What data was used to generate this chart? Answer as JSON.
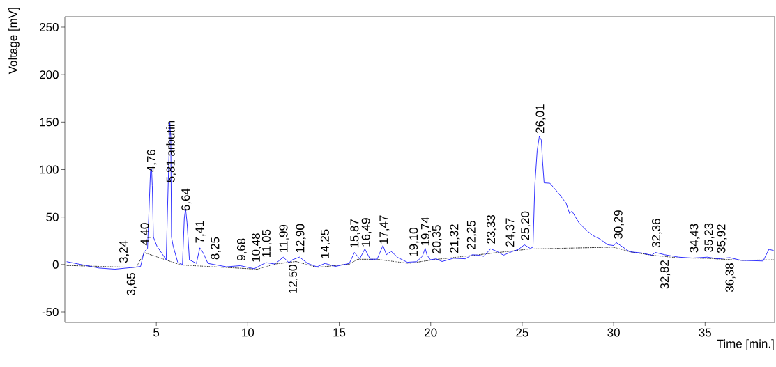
{
  "chart_data": {
    "type": "line",
    "xlabel": "Time [min.]",
    "ylabel": "Voltage [mV]",
    "xlim": [
      0,
      38.8
    ],
    "ylim": [
      -61,
      261
    ],
    "xticks": [
      5,
      10,
      15,
      20,
      25,
      30,
      35
    ],
    "yticks": [
      -50,
      0,
      50,
      100,
      150,
      200,
      250
    ],
    "grid": false,
    "marker": "none",
    "series": [
      {
        "color": "#0000ff",
        "line_style": "solid",
        "x": [
          0.1,
          1.86,
          2.74,
          3.76,
          4.14,
          4.33,
          4.52,
          4.68,
          4.74,
          4.78,
          4.84,
          5.03,
          5.54,
          5.67,
          5.74,
          5.79,
          5.83,
          5.92,
          6.17,
          6.43,
          6.53,
          6.6,
          6.68,
          6.81,
          7.19,
          7.38,
          7.57,
          7.82,
          8.83,
          9.59,
          10.35,
          10.99,
          11.49,
          11.94,
          12.25,
          12.44,
          12.83,
          13.27,
          13.78,
          14.22,
          14.79,
          15.55,
          15.83,
          16.12,
          16.4,
          16.69,
          17.07,
          17.39,
          17.58,
          17.83,
          18.21,
          18.72,
          19.23,
          19.54,
          19.7,
          19.8,
          19.99,
          20.3,
          20.62,
          21.25,
          21.89,
          22.27,
          22.65,
          22.9,
          23.28,
          23.66,
          23.98,
          24.42,
          24.8,
          25.12,
          25.44,
          25.59,
          25.69,
          25.82,
          25.94,
          26.05,
          26.11,
          26.2,
          26.52,
          26.96,
          27.4,
          27.59,
          27.72,
          28.1,
          28.48,
          28.86,
          29.24,
          29.68,
          30.0,
          30.15,
          30.51,
          30.89,
          31.52,
          32.09,
          32.28,
          32.79,
          33.55,
          34.31,
          35.13,
          35.7,
          36.34,
          36.97,
          38.17,
          38.49,
          38.75
        ],
        "values": [
          3,
          -3.7,
          -4.9,
          -3,
          -2,
          13.4,
          17,
          98,
          101,
          83,
          29,
          19.5,
          5,
          100,
          150,
          134,
          29,
          19.5,
          2.4,
          0,
          49,
          58.7,
          44,
          5,
          1.2,
          17.6,
          12,
          1.2,
          -2.4,
          -1.2,
          -4.4,
          2,
          0.5,
          7.8,
          2,
          5,
          7.8,
          1.2,
          -2.4,
          1.2,
          -2,
          1.2,
          12.7,
          6,
          16.4,
          5.6,
          5.6,
          20,
          10.3,
          14,
          7.3,
          2.4,
          3,
          8.6,
          17,
          9.8,
          5,
          6,
          3.2,
          6.6,
          6,
          10.3,
          9.8,
          8.6,
          16.6,
          13.4,
          9.8,
          13.4,
          16,
          20.8,
          17,
          18.3,
          83,
          120,
          135,
          131,
          110,
          86,
          85.6,
          75.8,
          64.8,
          53.8,
          56.3,
          44,
          36.7,
          30.6,
          27,
          20.8,
          20,
          23,
          18.3,
          13.4,
          12.2,
          9.8,
          12.7,
          10.3,
          7.8,
          6.8,
          7.8,
          6,
          7.3,
          4.4,
          3.7,
          16,
          14.7
        ]
      },
      {
        "color": "#000000",
        "line_style": "dotted",
        "x": [
          0.1,
          3.9,
          4.35,
          5.59,
          6.36,
          10.53,
          11.48,
          12.64,
          13.78,
          15.57,
          16.0,
          17.07,
          18.8,
          19.23,
          20.1,
          25.44,
          30.0,
          30.89,
          32.09,
          33.55,
          35.13,
          36.97,
          38.75
        ],
        "values": [
          -1,
          -3,
          12.5,
          4.4,
          -0.5,
          -4.9,
          0.5,
          3.2,
          -3,
          0.5,
          5.5,
          5.5,
          1.2,
          2.4,
          4.9,
          16.4,
          18.3,
          13.4,
          9.8,
          7,
          6.5,
          4.4,
          5
        ]
      }
    ],
    "annotations": [
      {
        "text": "3,24",
        "x": 3.24,
        "y": -3.9
      },
      {
        "text": "3,65",
        "x": 3.65,
        "y": -3.2
      },
      {
        "text": "4,40",
        "x": 4.4,
        "y": 14.7
      },
      {
        "text": "4,76",
        "x": 4.76,
        "y": 92
      },
      {
        "text": "5,81 arbutin",
        "x": 5.81,
        "y": 81
      },
      {
        "text": "6,64",
        "x": 6.64,
        "y": 51
      },
      {
        "text": "7,41",
        "x": 7.41,
        "y": 17
      },
      {
        "text": "8,25",
        "x": 8.25,
        "y": -0.3
      },
      {
        "text": "9,68",
        "x": 9.68,
        "y": -1.6
      },
      {
        "text": "10,48",
        "x": 10.48,
        "y": -3.1
      },
      {
        "text": "11,05",
        "x": 11.05,
        "y": 1.8
      },
      {
        "text": "11,99",
        "x": 11.99,
        "y": 6.9
      },
      {
        "text": "12,50",
        "x": 12.5,
        "y": 5.4
      },
      {
        "text": "12,90",
        "x": 12.9,
        "y": 6.7
      },
      {
        "text": "14,25",
        "x": 14.25,
        "y": 1
      },
      {
        "text": "15,87",
        "x": 15.87,
        "y": 11.8
      },
      {
        "text": "16,49",
        "x": 16.49,
        "y": 13
      },
      {
        "text": "17,47",
        "x": 17.47,
        "y": 15.9
      },
      {
        "text": "19,10",
        "x": 19.1,
        "y": 2.8
      },
      {
        "text": "19,74",
        "x": 19.74,
        "y": 14
      },
      {
        "text": "20,35",
        "x": 20.35,
        "y": 5.6
      },
      {
        "text": "21,32",
        "x": 21.32,
        "y": 6.5
      },
      {
        "text": "22,25",
        "x": 22.25,
        "y": 10.3
      },
      {
        "text": "23,33",
        "x": 23.33,
        "y": 16.2
      },
      {
        "text": "24,37",
        "x": 24.37,
        "y": 13
      },
      {
        "text": "25,20",
        "x": 25.2,
        "y": 19.9
      },
      {
        "text": "26,01",
        "x": 26.01,
        "y": 132.6
      },
      {
        "text": "30,29",
        "x": 30.29,
        "y": 21.2
      },
      {
        "text": "32,36",
        "x": 32.36,
        "y": 12.3
      },
      {
        "text": "32,82",
        "x": 32.82,
        "y": 10.2
      },
      {
        "text": "34,43",
        "x": 34.43,
        "y": 6.9
      },
      {
        "text": "35,23",
        "x": 35.23,
        "y": 7.5
      },
      {
        "text": "35,92",
        "x": 35.92,
        "y": 6.4
      },
      {
        "text": "36,38",
        "x": 36.38,
        "y": 7.1
      }
    ]
  }
}
